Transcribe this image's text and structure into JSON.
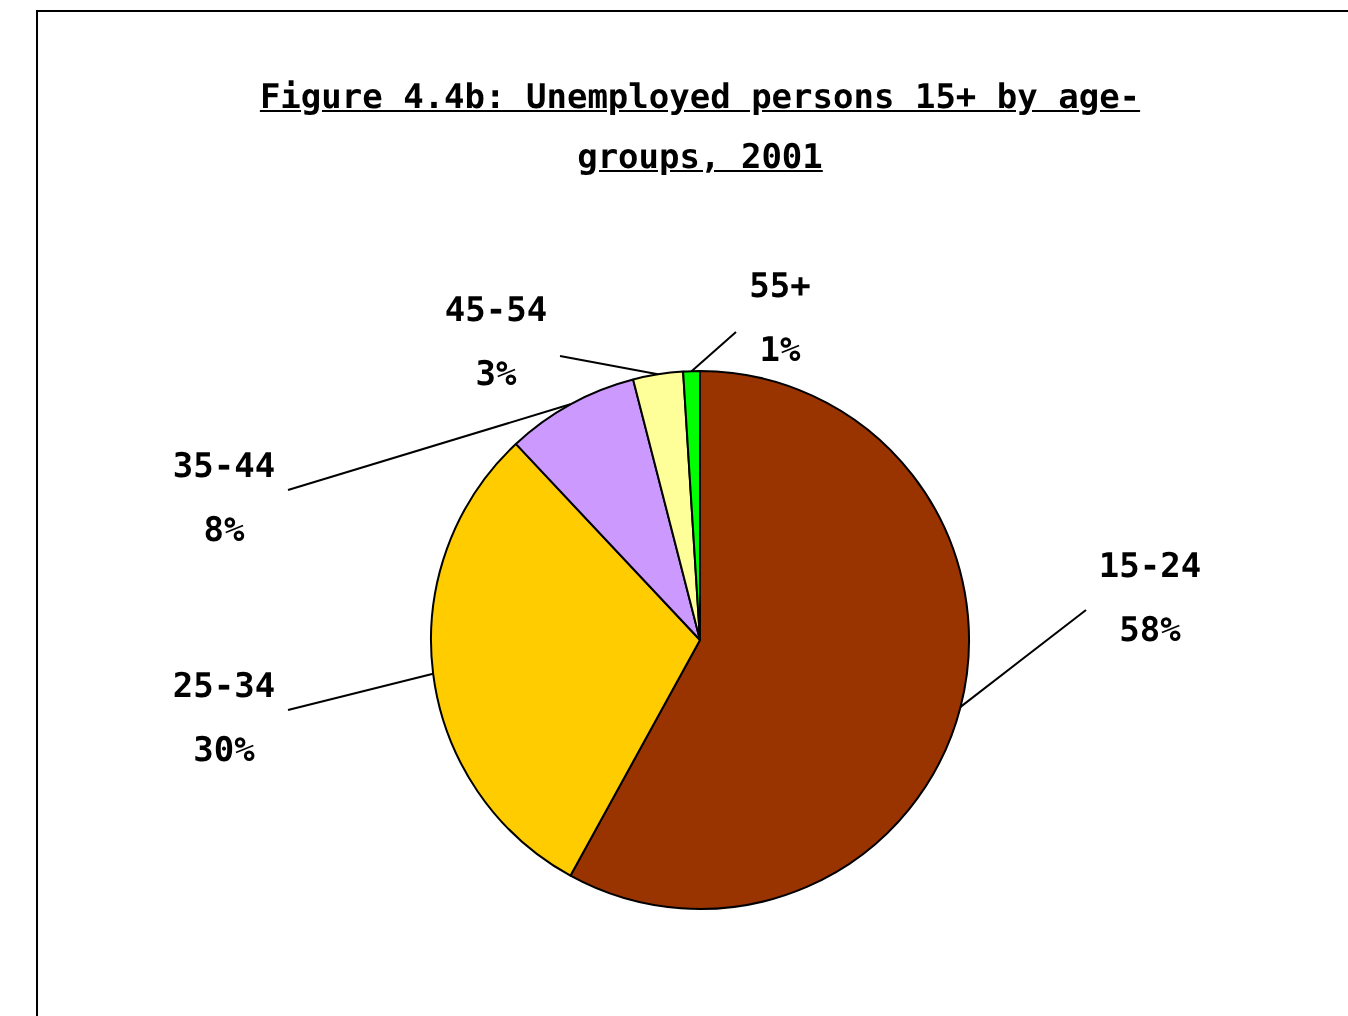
{
  "chart_data": {
    "type": "pie",
    "title": "Figure 4.4b: Unemployed persons 15+ by age-groups, 2001",
    "categories": [
      "15-24",
      "25-34",
      "35-44",
      "45-54",
      "55+"
    ],
    "values": [
      58,
      30,
      8,
      3,
      1
    ],
    "colors": [
      "#993300",
      "#ffcc00",
      "#cc99ff",
      "#ffff99",
      "#00ff00"
    ],
    "value_labels": [
      "58%",
      "30%",
      "8%",
      "3%",
      "1%"
    ],
    "legend": false
  }
}
